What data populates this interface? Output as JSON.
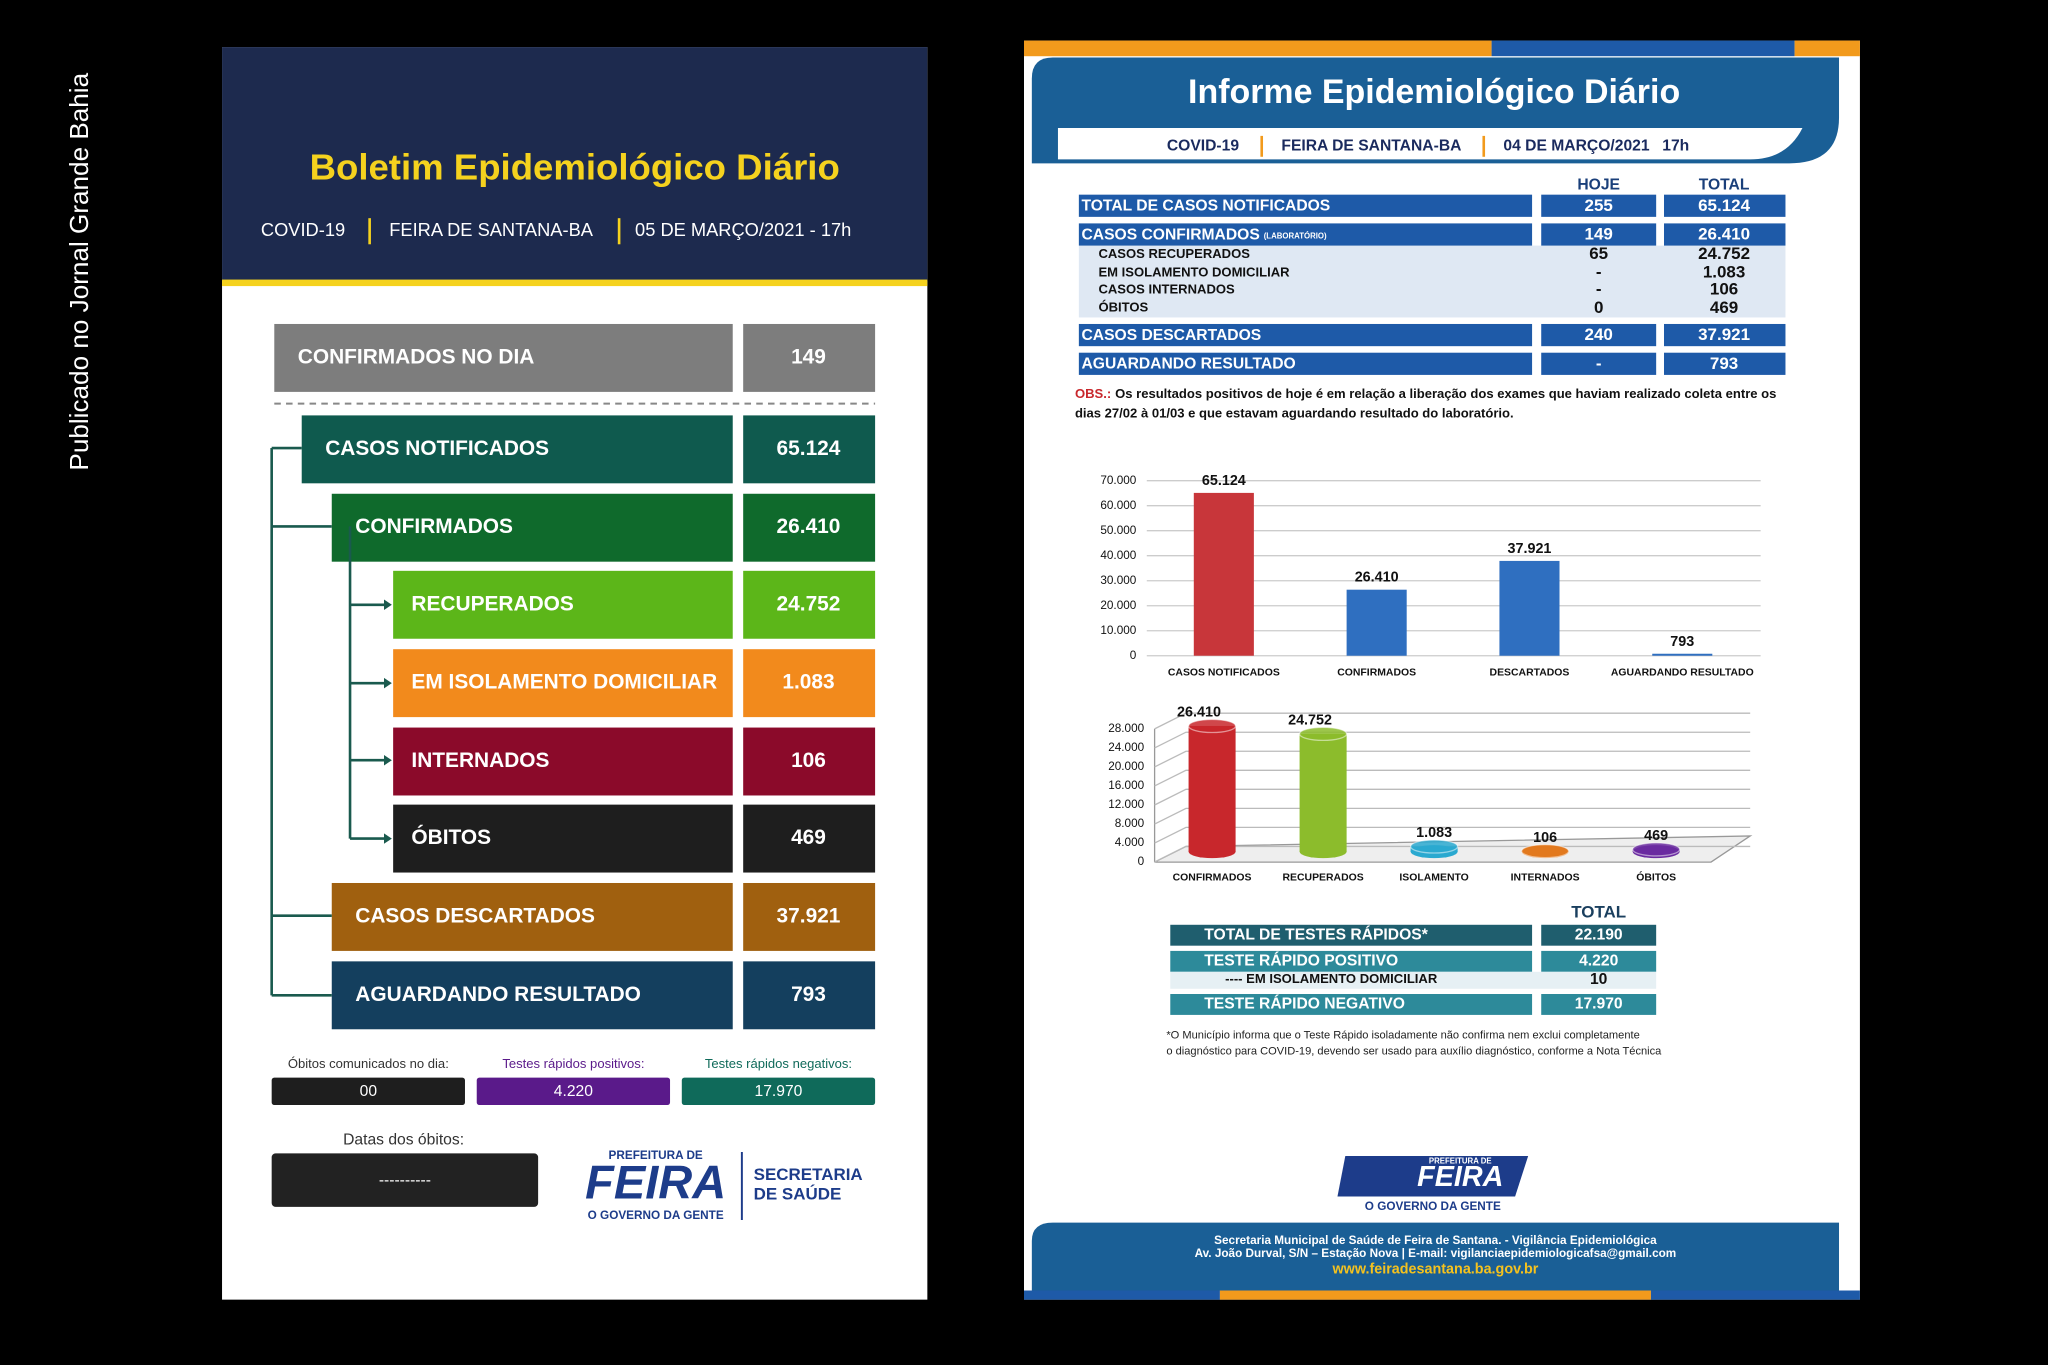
{
  "side_note": "Publicado no Jornal Grande Bahia",
  "left": {
    "title": "Boletim Epidemiológico Diário",
    "subtitle": [
      "COVID-19",
      "FEIRA DE SANTANA-BA",
      "05 DE MARÇO/2021 - 17h"
    ],
    "rows": [
      {
        "label": "CONFIRMADOS NO DIA",
        "value": "149",
        "color": "#7d7d7d"
      },
      {
        "label": "CASOS NOTIFICADOS",
        "value": "65.124",
        "color": "#0f5a4e"
      },
      {
        "label": "CONFIRMADOS",
        "value": "26.410",
        "color": "#0f6a2c"
      },
      {
        "label": "RECUPERADOS",
        "value": "24.752",
        "color": "#5cb619"
      },
      {
        "label": "EM ISOLAMENTO DOMICILIAR",
        "value": "1.083",
        "color": "#f28a1c"
      },
      {
        "label": "INTERNADOS",
        "value": "106",
        "color": "#8b0a2a"
      },
      {
        "label": "ÓBITOS",
        "value": "469",
        "color": "#1e1e1e"
      },
      {
        "label": "CASOS DESCARTADOS",
        "value": "37.921",
        "color": "#a0600f"
      },
      {
        "label": "AGUARDANDO RESULTADO",
        "value": "793",
        "color": "#143f5e"
      }
    ],
    "footer_boxes": [
      {
        "label": "Óbitos comunicados no dia:",
        "value": "00",
        "color": "#1e1e1e"
      },
      {
        "label": "Testes rápidos positivos:",
        "value": "4.220",
        "color": "#5a1a8a"
      },
      {
        "label": "Testes rápidos negativos:",
        "value": "17.970",
        "color": "#0f6a5a"
      }
    ],
    "death_dates": {
      "label": "Datas dos óbitos:",
      "value": "----------"
    },
    "logo": {
      "top": "PREFEITURA DE",
      "name": "FEIRA",
      "tagline": "O GOVERNO DA GENTE",
      "dept": [
        "SECRETARIA",
        "DE SAÚDE"
      ]
    }
  },
  "right": {
    "title": "Informe Epidemiológico Diário",
    "subtitle": [
      "COVID-19",
      "FEIRA DE SANTANA-BA",
      "04 DE MARÇO/2021",
      "17h"
    ],
    "table": {
      "header": [
        "HOJE",
        "TOTAL"
      ],
      "rows": [
        {
          "label": "TOTAL DE CASOS NOTIFICADOS",
          "today": "255",
          "total": "65.124"
        },
        {
          "label": "CASOS CONFIRMADOS",
          "note": "(LABORATÓRIO)",
          "today": "149",
          "total": "26.410"
        },
        {
          "label": "CASOS RECUPERADOS",
          "today": "65",
          "total": "24.752"
        },
        {
          "label": "EM ISOLAMENTO DOMICILIAR",
          "today": "-",
          "total": "1.083"
        },
        {
          "label": "CASOS INTERNADOS",
          "today": "-",
          "total": "106"
        },
        {
          "label": "ÓBITOS",
          "today": "0",
          "total": "469"
        },
        {
          "label": "CASOS DESCARTADOS",
          "today": "240",
          "total": "37.921"
        },
        {
          "label": "AGUARDANDO RESULTADO",
          "today": "-",
          "total": "793"
        }
      ]
    },
    "obs": {
      "label": "OBS.:",
      "lines": [
        "Os resultados positivos de hoje é em relação a liberação dos exames que haviam realizado coleta entre os",
        "dias 27/02 à 01/03 e que estavam aguardando resultado do laboratório."
      ]
    },
    "tests": {
      "header": "TOTAL",
      "rows": [
        {
          "label": "TOTAL DE TESTES RÁPIDOS*",
          "value": "22.190"
        },
        {
          "label": "TESTE RÁPIDO POSITIVO",
          "value": "4.220"
        },
        {
          "label": "---- EM ISOLAMENTO DOMICILIAR",
          "value": "10"
        },
        {
          "label": "TESTE RÁPIDO NEGATIVO",
          "value": "17.970"
        }
      ],
      "note": [
        "*O Município informa  que o Teste Rápido isoladamente não confirma nem exclui completamente",
        "o diagnóstico para COVID-19, devendo ser usado para auxílio diagnóstico, conforme a Nota Técnica"
      ]
    },
    "logo": {
      "top": "PREFEITURA DE",
      "name": "FEIRA",
      "tagline": "O GOVERNO DA GENTE"
    },
    "footer": [
      "Secretaria Municipal de Saúde de Feira de Santana. - Vigilância Epidemiológica",
      "Av. João Durval, S/N – Estação Nova | E-mail: vigilanciaepidemiologicafsa@gmail.com",
      "www.feiradesantana.ba.gov.br"
    ]
  },
  "chart_data": [
    {
      "type": "bar",
      "categories": [
        "CASOS NOTIFICADOS",
        "CONFIRMADOS",
        "DESCARTADOS",
        "AGUARDANDO RESULTADO"
      ],
      "values": [
        65124,
        26410,
        37921,
        793
      ],
      "value_labels": [
        "65.124",
        "26.410",
        "37.921",
        "793"
      ],
      "colors": [
        "#c8363a",
        "#2f6fc0",
        "#2f6fc0",
        "#2f6fc0"
      ],
      "ylim": [
        0,
        70000
      ],
      "yticks": [
        0,
        {
          "value": 10000,
          "label": "10.000"
        },
        {
          "value": 20000,
          "label": "20.000"
        },
        {
          "value": 30000,
          "label": "30.000"
        },
        {
          "value": 40000,
          "label": "40.000"
        },
        {
          "value": 50000,
          "label": "50.000"
        },
        {
          "value": 60000,
          "label": "60.000"
        },
        {
          "value": 70000,
          "label": "70.000"
        }
      ],
      "grid": true
    },
    {
      "type": "cylinder",
      "categories": [
        "CONFIRMADOS",
        "RECUPERADOS",
        "ISOLAMENTO",
        "INTERNADOS",
        "ÓBITOS"
      ],
      "values": [
        26410,
        24752,
        1083,
        106,
        469
      ],
      "value_labels": [
        "26.410",
        "24.752",
        "1.083",
        "106",
        "469"
      ],
      "colors": [
        "#c8272c",
        "#8cbc2c",
        "#2aa9d0",
        "#e2791f",
        "#6a2aa0"
      ],
      "ylim": [
        0,
        28000
      ],
      "yticks": [
        0,
        {
          "value": 4000,
          "label": "4.000"
        },
        {
          "value": 8000,
          "label": "8.000"
        },
        {
          "value": 12000,
          "label": "12.000"
        },
        {
          "value": 16000,
          "label": "16.000"
        },
        {
          "value": 20000,
          "label": "20.000"
        },
        {
          "value": 24000,
          "label": "24.000"
        },
        {
          "value": 28000,
          "label": "28.000"
        }
      ],
      "grid": true
    }
  ]
}
